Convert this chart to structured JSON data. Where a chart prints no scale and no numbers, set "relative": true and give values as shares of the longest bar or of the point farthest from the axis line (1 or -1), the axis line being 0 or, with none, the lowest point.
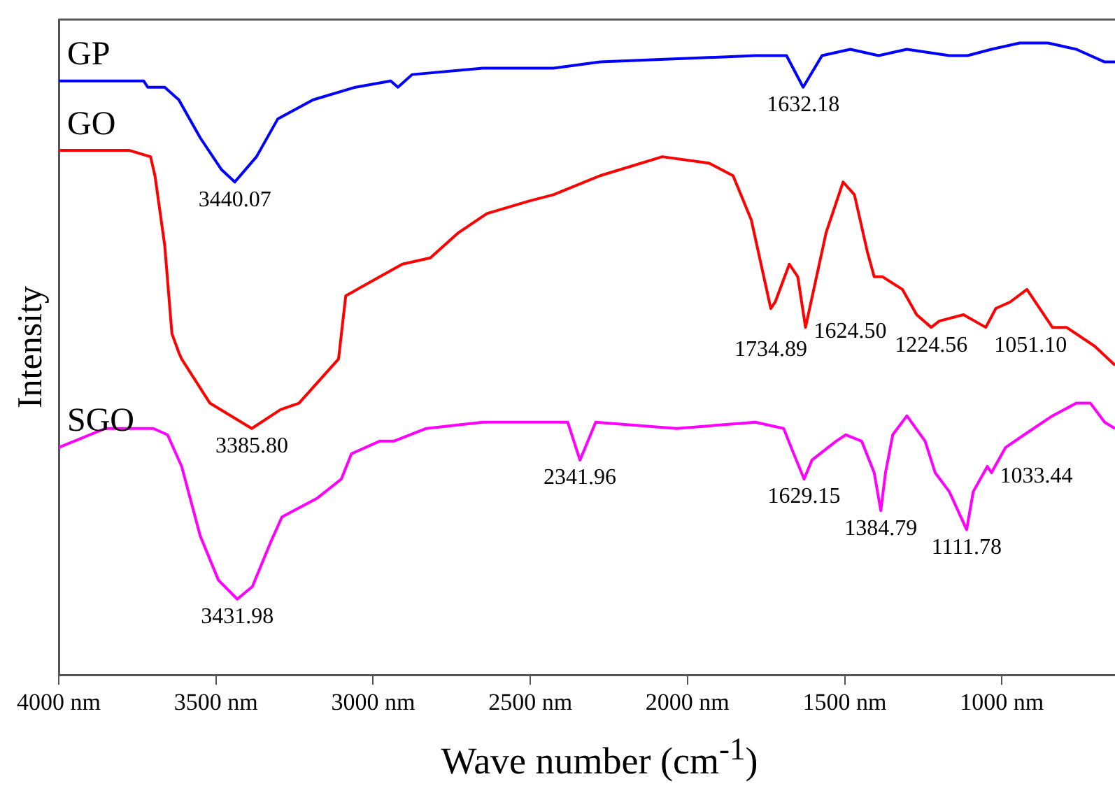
{
  "chart_data": {
    "type": "line",
    "xlabel": "Wave number (cm$^{-1}$)",
    "ylabel": "Intensity",
    "relative": true,
    "grid": false,
    "legend": false,
    "marker": "none",
    "line_style": "solid",
    "xlim": [
      4000,
      640
    ],
    "xticks": [
      {
        "value": 4000,
        "label": "4000 nm"
      },
      {
        "value": 3500,
        "label": "3500 nm"
      },
      {
        "value": 3000,
        "label": "3000 nm"
      },
      {
        "value": 2500,
        "label": "2500 nm"
      },
      {
        "value": 2000,
        "label": "2000 nm"
      },
      {
        "value": 1500,
        "label": "1500 nm"
      },
      {
        "value": 1000,
        "label": "1000 nm"
      }
    ],
    "series": [
      {
        "name": "GP",
        "color": "#0000ff",
        "x": [
          4000,
          3730,
          3717,
          3663,
          3618,
          3550,
          3483,
          3440,
          3371,
          3303,
          3191,
          3056,
          2944,
          2921,
          2876,
          2651,
          2426,
          2278,
          1783,
          1685,
          1632,
          1572,
          1482,
          1392,
          1302,
          1167,
          1109,
          1033,
          943,
          853,
          763,
          673,
          640
        ],
        "values": [
          0.94,
          0.94,
          0.93,
          0.93,
          0.91,
          0.85,
          0.8,
          0.78,
          0.82,
          0.88,
          0.91,
          0.93,
          0.94,
          0.93,
          0.95,
          0.96,
          0.96,
          0.97,
          0.98,
          0.98,
          0.93,
          0.98,
          0.99,
          0.98,
          0.99,
          0.98,
          0.98,
          0.99,
          1.0,
          1.0,
          0.99,
          0.97,
          0.97
        ]
      },
      {
        "name": "GO",
        "color": "#ff0000",
        "x": [
          4000,
          3775,
          3708,
          3694,
          3663,
          3640,
          3618,
          3609,
          3519,
          3386,
          3294,
          3236,
          3110,
          3087,
          2979,
          2907,
          2818,
          2728,
          2638,
          2503,
          2426,
          2278,
          2080,
          1932,
          1855,
          1797,
          1766,
          1735,
          1721,
          1676,
          1649,
          1624.5,
          1559,
          1505,
          1469,
          1428,
          1406,
          1379,
          1316,
          1271,
          1224.56,
          1199,
          1122,
          1051.1,
          1019,
          974,
          920,
          839,
          794,
          704,
          640
        ],
        "values": [
          0.83,
          0.83,
          0.82,
          0.79,
          0.68,
          0.54,
          0.51,
          0.5,
          0.43,
          0.39,
          0.42,
          0.43,
          0.5,
          0.6,
          0.63,
          0.65,
          0.66,
          0.7,
          0.73,
          0.75,
          0.76,
          0.79,
          0.82,
          0.81,
          0.79,
          0.72,
          0.65,
          0.58,
          0.59,
          0.65,
          0.63,
          0.55,
          0.7,
          0.78,
          0.76,
          0.67,
          0.63,
          0.63,
          0.61,
          0.57,
          0.55,
          0.56,
          0.57,
          0.55,
          0.58,
          0.59,
          0.61,
          0.55,
          0.55,
          0.52,
          0.49
        ]
      },
      {
        "name": "SGO",
        "color": "#ff00ff",
        "x": [
          4000,
          3852,
          3699,
          3654,
          3609,
          3550,
          3492,
          3432,
          3384,
          3326,
          3290,
          3177,
          3101,
          3069,
          2979,
          2934,
          2831,
          2651,
          2426,
          2381,
          2342,
          2325,
          2292,
          2035,
          1784,
          1694,
          1662,
          1629,
          1604,
          1527,
          1496,
          1446,
          1406,
          1385,
          1370,
          1347,
          1302,
          1244,
          1212,
          1167,
          1112,
          1091,
          1046,
          1033,
          988,
          929,
          839,
          763,
          718,
          673,
          640
        ],
        "values": [
          0.36,
          0.39,
          0.39,
          0.38,
          0.33,
          0.22,
          0.15,
          0.12,
          0.14,
          0.21,
          0.25,
          0.28,
          0.31,
          0.35,
          0.37,
          0.37,
          0.39,
          0.4,
          0.4,
          0.4,
          0.34,
          0.36,
          0.4,
          0.39,
          0.4,
          0.39,
          0.35,
          0.31,
          0.34,
          0.37,
          0.38,
          0.37,
          0.32,
          0.26,
          0.32,
          0.38,
          0.41,
          0.37,
          0.32,
          0.29,
          0.23,
          0.29,
          0.33,
          0.32,
          0.36,
          0.38,
          0.41,
          0.43,
          0.43,
          0.4,
          0.39
        ]
      }
    ],
    "annotations": [
      {
        "text": "3440.07",
        "x": 3440,
        "y": 0.78
      },
      {
        "text": "1632.18",
        "x": 1632,
        "y": 0.93
      },
      {
        "text": "3385.80",
        "x": 3386,
        "y": 0.39
      },
      {
        "text": "1734.89",
        "x": 1735,
        "y": 0.58
      },
      {
        "text": "1624.50",
        "x": 1624.5,
        "y": 0.55
      },
      {
        "text": "1224.56",
        "x": 1224.56,
        "y": 0.55
      },
      {
        "text": "1051.10",
        "x": 1051.1,
        "y": 0.55
      },
      {
        "text": "3431.98",
        "x": 3432,
        "y": 0.12
      },
      {
        "text": "2341.96",
        "x": 2342,
        "y": 0.34
      },
      {
        "text": "1629.15",
        "x": 1629,
        "y": 0.31
      },
      {
        "text": "1384.79",
        "x": 1385,
        "y": 0.26
      },
      {
        "text": "1111.78",
        "x": 1112,
        "y": 0.23
      },
      {
        "text": "1033.44",
        "x": 1033,
        "y": 0.32
      }
    ]
  }
}
